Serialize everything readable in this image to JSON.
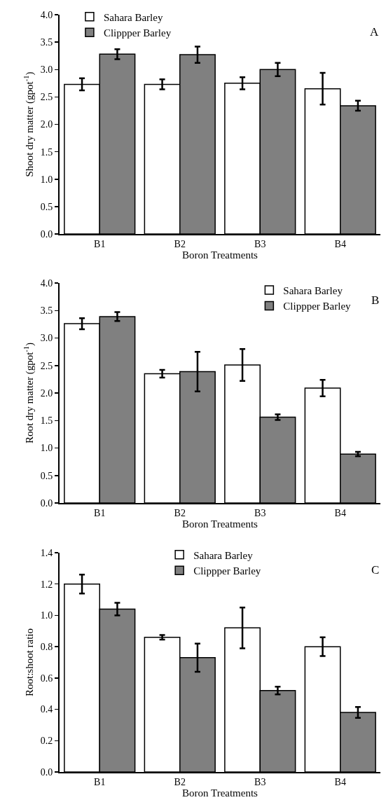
{
  "chart_data": [
    {
      "type": "bar",
      "xlabel": "Boron Treatments",
      "ylabel": "Shoot dry matter (gpot$^{-1}$)",
      "annotations": [
        "A"
      ],
      "categories": [
        "B1",
        "B2",
        "B3",
        "B4"
      ],
      "ylim": [
        0,
        4
      ],
      "yticks": [
        {
          "value": 0,
          "label": "0.0"
        },
        {
          "value": 0.5,
          "label": "0.5"
        },
        {
          "value": 1,
          "label": "1.0"
        },
        {
          "value": 1.5,
          "label": "1.5"
        },
        {
          "value": 2,
          "label": "2.0"
        },
        {
          "value": 2.5,
          "label": "2.5"
        },
        {
          "value": 3,
          "label": "3.0"
        },
        {
          "value": 3.5,
          "label": "3.5"
        },
        {
          "value": 4,
          "label": "4.0"
        }
      ],
      "grid": false,
      "legend": "top left",
      "series": [
        {
          "name": "Sahara Barley",
          "color": "#ffffff",
          "values": [
            2.73,
            2.73,
            2.75,
            2.65
          ],
          "errors": [
            0.11,
            0.09,
            0.11,
            0.29
          ]
        },
        {
          "name": "Clippper Barley",
          "color": "#808080",
          "values": [
            3.28,
            3.27,
            3.0,
            2.34
          ],
          "errors": [
            0.09,
            0.15,
            0.12,
            0.09
          ]
        }
      ]
    },
    {
      "type": "bar",
      "xlabel": "Boron Treatments",
      "ylabel": "Root dry matter (gpot$^{-1}$)",
      "annotations": [
        "B"
      ],
      "categories": [
        "B1",
        "B2",
        "B3",
        "B4"
      ],
      "ylim": [
        0,
        4
      ],
      "yticks": [
        {
          "value": 0,
          "label": "0.0"
        },
        {
          "value": 0.5,
          "label": "0.5"
        },
        {
          "value": 1,
          "label": "1.0"
        },
        {
          "value": 1.5,
          "label": "1.5"
        },
        {
          "value": 2,
          "label": "2.0"
        },
        {
          "value": 2.5,
          "label": "2.5"
        },
        {
          "value": 3,
          "label": "3.0"
        },
        {
          "value": 3.5,
          "label": "3.5"
        },
        {
          "value": 4,
          "label": "4.0"
        }
      ],
      "grid": false,
      "legend": "top right",
      "series": [
        {
          "name": "Sahara Barley",
          "color": "#ffffff",
          "values": [
            3.26,
            2.35,
            2.51,
            2.09
          ],
          "errors": [
            0.1,
            0.07,
            0.29,
            0.15
          ]
        },
        {
          "name": "Clippper Barley",
          "color": "#808080",
          "values": [
            3.39,
            2.39,
            1.56,
            0.89
          ],
          "errors": [
            0.08,
            0.36,
            0.05,
            0.04
          ]
        }
      ]
    },
    {
      "type": "bar",
      "xlabel": "Boron Treatments",
      "ylabel": "Root:shoot ratio",
      "annotations": [
        "C"
      ],
      "categories": [
        "B1",
        "B2",
        "B3",
        "B4"
      ],
      "ylim": [
        0,
        1.4
      ],
      "yticks": [
        {
          "value": 0,
          "label": "0.0"
        },
        {
          "value": 0.2,
          "label": "0.2"
        },
        {
          "value": 0.4,
          "label": "0.4"
        },
        {
          "value": 0.6,
          "label": "0.6"
        },
        {
          "value": 0.8,
          "label": "0.8"
        },
        {
          "value": 1,
          "label": "1.0"
        },
        {
          "value": 1.2,
          "label": "1.2"
        },
        {
          "value": 1.4,
          "label": "1.4"
        }
      ],
      "grid": false,
      "legend": "top",
      "series": [
        {
          "name": "Sahara Barley",
          "color": "#ffffff",
          "values": [
            1.2,
            0.86,
            0.92,
            0.8
          ],
          "errors": [
            0.06,
            0.015,
            0.13,
            0.06
          ]
        },
        {
          "name": "Clippper Barley",
          "color": "#808080",
          "values": [
            1.04,
            0.73,
            0.52,
            0.38
          ],
          "errors": [
            0.04,
            0.09,
            0.025,
            0.035
          ]
        }
      ]
    }
  ]
}
